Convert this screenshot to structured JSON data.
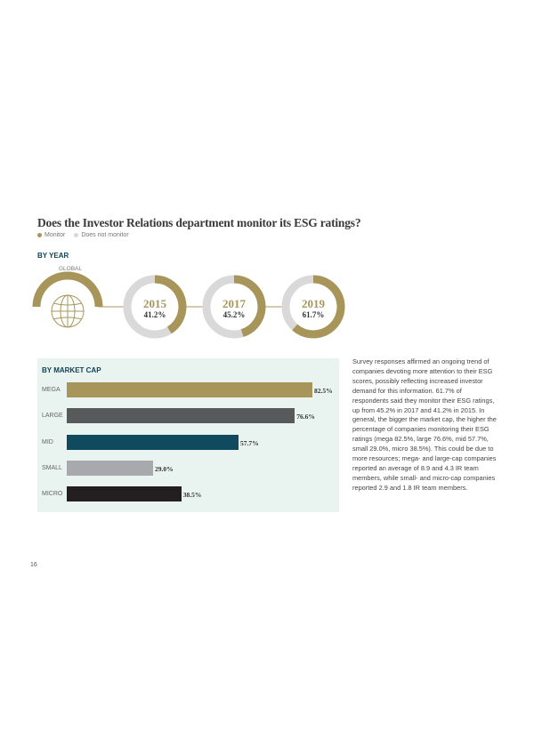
{
  "title": "Does the Investor Relations department monitor its ESG ratings?",
  "legend": [
    {
      "label": "Monitor",
      "color": "#a8955a"
    },
    {
      "label": "Does not monitor",
      "color": "#d9d9d9"
    }
  ],
  "by_year_label": "BY YEAR",
  "global_label": "GLOBAL",
  "by_market_cap_label": "BY MARKET CAP",
  "chart_data": [
    {
      "type": "pie",
      "subtype": "donut",
      "series": [
        {
          "name": "Monitor"
        },
        {
          "name": "Does not monitor"
        }
      ],
      "categories": [
        "2015",
        "2017",
        "2019"
      ],
      "values": [
        41.2,
        45.2,
        61.7
      ],
      "labels": [
        "41.2%",
        "45.2%",
        "61.7%"
      ]
    },
    {
      "type": "bar",
      "orientation": "horizontal",
      "categories": [
        "MEGA",
        "LARGE",
        "MID",
        "SMALL",
        "MICRO"
      ],
      "values": [
        82.5,
        76.6,
        57.7,
        29.0,
        38.5
      ],
      "labels": [
        "82.5%",
        "76.6%",
        "57.7%",
        "29.0%",
        "38.5%"
      ],
      "colors": [
        "#a8955a",
        "#58595b",
        "#0f4a5f",
        "#a7a9ac",
        "#231f20"
      ]
    }
  ],
  "paragraph": "Survey responses affirmed an ongoing trend of companies devoting more attention to their ESG scores, possibly reflecting increased investor demand for this information. 61.7% of respondents said they monitor their ESG ratings, up from 45.2% in 2017 and 41.2% in 2015. In general, the bigger the market cap, the higher the percentage of companies monitoring their ESG ratings (mega 82.5%, large 76.6%, mid 57.7%, small 29.0%, micro 38.5%). This could be due to more resources; mega- and large-cap companies reported an average of 8.9 and 4.3 IR team members, while small- and micro-cap companies reported 2.9 and 1.8 IR team members.",
  "page_number": "16"
}
